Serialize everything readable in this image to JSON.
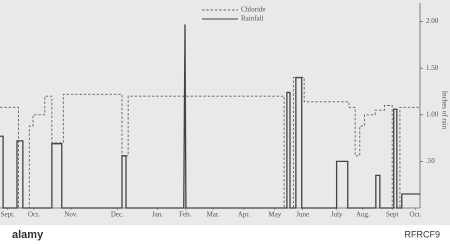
{
  "chart_data": {
    "type": "line",
    "y_axis_label": "Inches of rain",
    "xlim": [
      0,
      13.6
    ],
    "xticks": [
      {
        "value": 0.25,
        "label": "Sept."
      },
      {
        "value": 1.1,
        "label": "Oct."
      },
      {
        "value": 2.3,
        "label": "Nov."
      },
      {
        "value": 3.8,
        "label": "Dec."
      },
      {
        "value": 5.1,
        "label": "Jan."
      },
      {
        "value": 6.0,
        "label": "Feb."
      },
      {
        "value": 6.9,
        "label": "Mar."
      },
      {
        "value": 7.9,
        "label": "Apr."
      },
      {
        "value": 8.9,
        "label": "May"
      },
      {
        "value": 9.8,
        "label": "June"
      },
      {
        "value": 10.9,
        "label": "July"
      },
      {
        "value": 11.75,
        "label": "Aug."
      },
      {
        "value": 12.7,
        "label": "Sept"
      },
      {
        "value": 13.45,
        "label": "Oct."
      }
    ],
    "ylim": [
      0,
      2.2
    ],
    "yticks": [
      {
        "value": 0.5,
        "label": ".50"
      },
      {
        "value": 1,
        "label": "1.00"
      },
      {
        "value": 1.5,
        "label": "1.50"
      },
      {
        "value": 2,
        "label": "2.00"
      }
    ],
    "series": [
      {
        "name": "Chloride",
        "color": "#666666",
        "dashed": true,
        "x": [
          0,
          0.6,
          0.6,
          0.95,
          0.95,
          1.07,
          1.07,
          1.45,
          1.45,
          1.68,
          1.68,
          2.05,
          2.05,
          3.95,
          3.95,
          4.15,
          4.15,
          9.2,
          9.2,
          9.5,
          9.5,
          9.85,
          9.85,
          11.3,
          11.3,
          11.5,
          11.5,
          11.65,
          11.65,
          11.8,
          11.8,
          12.15,
          12.15,
          12.45,
          12.45,
          12.7,
          12.7,
          12.95,
          12.95,
          13.6
        ],
        "values": [
          1.08,
          1.08,
          0,
          0,
          0.88,
          0.88,
          1.0,
          1.0,
          1.2,
          1.2,
          0.7,
          0.7,
          1.22,
          1.22,
          0.56,
          0.56,
          1.2,
          1.2,
          0,
          0,
          1.4,
          1.4,
          1.14,
          1.14,
          1.08,
          1.08,
          0.56,
          0.56,
          0.88,
          0.88,
          1.0,
          1.0,
          1.05,
          1.05,
          1.1,
          1.1,
          0,
          0,
          1.08,
          1.08
        ]
      },
      {
        "name": "Rainfall",
        "color": "#444444",
        "dashed": false,
        "x": [
          0,
          0.1,
          0.1,
          0.55,
          0.55,
          0.74,
          0.74,
          1.68,
          1.68,
          2.0,
          2.0,
          3.95,
          3.95,
          4.08,
          4.08,
          5.95,
          5.99,
          6.02,
          9.29,
          9.29,
          9.39,
          9.39,
          9.58,
          9.58,
          9.77,
          9.77,
          10.9,
          10.9,
          11.26,
          11.26,
          12.17,
          12.17,
          12.3,
          12.3,
          12.75,
          12.75,
          12.85,
          12.85,
          13.01,
          13.01,
          13.6
        ],
        "values": [
          0.77,
          0.77,
          0,
          0,
          0.72,
          0.72,
          0,
          0,
          0.69,
          0.69,
          0,
          0,
          0.56,
          0.56,
          0,
          0,
          1.97,
          0,
          0,
          1.24,
          1.24,
          0,
          0,
          1.4,
          1.4,
          0,
          0,
          0.5,
          0.5,
          0,
          0,
          0.35,
          0.35,
          0,
          0,
          1.06,
          1.06,
          0,
          0,
          0.15,
          0.15
        ]
      }
    ]
  },
  "watermark": {
    "logo": "alamy",
    "image_id": "RFRCF9"
  }
}
